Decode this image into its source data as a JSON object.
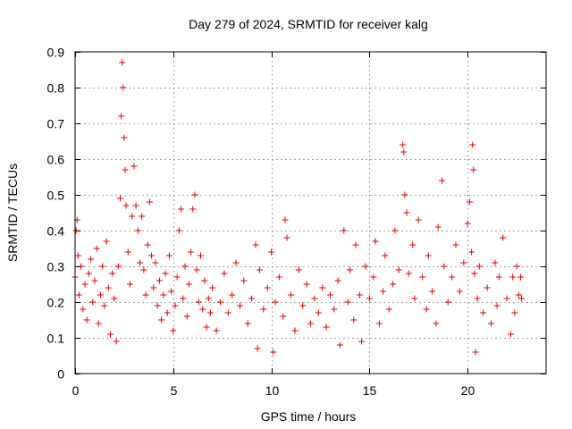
{
  "chart_data": {
    "type": "scatter",
    "title": "Day 279 of 2024, SRMTID for receiver kalg",
    "xlabel": "GPS time / hours",
    "ylabel": "SRMTID / TECUs",
    "xlim": [
      0,
      24
    ],
    "ylim": [
      0,
      0.9
    ],
    "xticks": [
      0,
      5,
      10,
      15,
      20
    ],
    "xtick_labels": [
      "0",
      "5",
      "10",
      "15",
      "20"
    ],
    "yticks": [
      0,
      0.1,
      0.2,
      0.3,
      0.4,
      0.5,
      0.6,
      0.7,
      0.8,
      0.9
    ],
    "ytick_labels": [
      "0",
      "0.1",
      "0.2",
      "0.3",
      "0.4",
      "0.5",
      "0.6",
      "0.7",
      "0.8",
      "0.9"
    ],
    "grid": true,
    "marker": "+",
    "color": "#e00000",
    "series": [
      {
        "name": "SRMTID",
        "points": [
          [
            0.0,
            0.27
          ],
          [
            0.05,
            0.4
          ],
          [
            0.1,
            0.43
          ],
          [
            0.15,
            0.33
          ],
          [
            0.2,
            0.22
          ],
          [
            0.3,
            0.3
          ],
          [
            0.4,
            0.18
          ],
          [
            0.5,
            0.25
          ],
          [
            0.6,
            0.15
          ],
          [
            0.7,
            0.28
          ],
          [
            0.8,
            0.32
          ],
          [
            0.9,
            0.2
          ],
          [
            1.0,
            0.26
          ],
          [
            1.1,
            0.35
          ],
          [
            1.2,
            0.14
          ],
          [
            1.3,
            0.22
          ],
          [
            1.4,
            0.3
          ],
          [
            1.5,
            0.19
          ],
          [
            1.6,
            0.37
          ],
          [
            1.7,
            0.24
          ],
          [
            1.8,
            0.11
          ],
          [
            1.9,
            0.28
          ],
          [
            2.0,
            0.21
          ],
          [
            2.1,
            0.09
          ],
          [
            2.2,
            0.3
          ],
          [
            2.3,
            0.49
          ],
          [
            2.35,
            0.72
          ],
          [
            2.4,
            0.87
          ],
          [
            2.45,
            0.8
          ],
          [
            2.5,
            0.66
          ],
          [
            2.55,
            0.57
          ],
          [
            2.6,
            0.47
          ],
          [
            2.7,
            0.34
          ],
          [
            2.8,
            0.25
          ],
          [
            2.9,
            0.44
          ],
          [
            3.0,
            0.58
          ],
          [
            3.1,
            0.47
          ],
          [
            3.2,
            0.4
          ],
          [
            3.3,
            0.31
          ],
          [
            3.4,
            0.44
          ],
          [
            3.5,
            0.29
          ],
          [
            3.6,
            0.22
          ],
          [
            3.7,
            0.36
          ],
          [
            3.8,
            0.48
          ],
          [
            3.9,
            0.33
          ],
          [
            4.0,
            0.24
          ],
          [
            4.1,
            0.31
          ],
          [
            4.2,
            0.19
          ],
          [
            4.3,
            0.26
          ],
          [
            4.4,
            0.15
          ],
          [
            4.5,
            0.22
          ],
          [
            4.6,
            0.28
          ],
          [
            4.7,
            0.17
          ],
          [
            4.8,
            0.33
          ],
          [
            4.9,
            0.23
          ],
          [
            5.0,
            0.12
          ],
          [
            5.1,
            0.19
          ],
          [
            5.2,
            0.27
          ],
          [
            5.3,
            0.4
          ],
          [
            5.4,
            0.46
          ],
          [
            5.5,
            0.21
          ],
          [
            5.6,
            0.3
          ],
          [
            5.7,
            0.16
          ],
          [
            5.8,
            0.25
          ],
          [
            5.9,
            0.34
          ],
          [
            6.0,
            0.46
          ],
          [
            6.1,
            0.5
          ],
          [
            6.2,
            0.29
          ],
          [
            6.3,
            0.2
          ],
          [
            6.4,
            0.33
          ],
          [
            6.5,
            0.18
          ],
          [
            6.6,
            0.26
          ],
          [
            6.7,
            0.13
          ],
          [
            6.8,
            0.21
          ],
          [
            6.9,
            0.17
          ],
          [
            7.0,
            0.24
          ],
          [
            7.2,
            0.12
          ],
          [
            7.4,
            0.2
          ],
          [
            7.6,
            0.28
          ],
          [
            7.8,
            0.17
          ],
          [
            8.0,
            0.22
          ],
          [
            8.2,
            0.31
          ],
          [
            8.4,
            0.19
          ],
          [
            8.6,
            0.26
          ],
          [
            8.8,
            0.14
          ],
          [
            9.0,
            0.21
          ],
          [
            9.2,
            0.36
          ],
          [
            9.3,
            0.07
          ],
          [
            9.4,
            0.29
          ],
          [
            9.6,
            0.18
          ],
          [
            9.8,
            0.24
          ],
          [
            10.0,
            0.34
          ],
          [
            10.1,
            0.06
          ],
          [
            10.2,
            0.2
          ],
          [
            10.4,
            0.27
          ],
          [
            10.6,
            0.16
          ],
          [
            10.7,
            0.43
          ],
          [
            10.8,
            0.38
          ],
          [
            11.0,
            0.22
          ],
          [
            11.2,
            0.12
          ],
          [
            11.4,
            0.29
          ],
          [
            11.6,
            0.19
          ],
          [
            11.8,
            0.25
          ],
          [
            12.0,
            0.14
          ],
          [
            12.2,
            0.21
          ],
          [
            12.4,
            0.17
          ],
          [
            12.6,
            0.24
          ],
          [
            12.8,
            0.13
          ],
          [
            13.0,
            0.22
          ],
          [
            13.2,
            0.18
          ],
          [
            13.4,
            0.26
          ],
          [
            13.5,
            0.08
          ],
          [
            13.7,
            0.4
          ],
          [
            13.9,
            0.2
          ],
          [
            14.0,
            0.29
          ],
          [
            14.2,
            0.15
          ],
          [
            14.3,
            0.36
          ],
          [
            14.5,
            0.22
          ],
          [
            14.6,
            0.09
          ],
          [
            14.8,
            0.3
          ],
          [
            15.0,
            0.21
          ],
          [
            15.2,
            0.27
          ],
          [
            15.3,
            0.37
          ],
          [
            15.5,
            0.14
          ],
          [
            15.7,
            0.23
          ],
          [
            15.8,
            0.33
          ],
          [
            16.0,
            0.18
          ],
          [
            16.2,
            0.25
          ],
          [
            16.3,
            0.4
          ],
          [
            16.5,
            0.29
          ],
          [
            16.7,
            0.64
          ],
          [
            16.75,
            0.62
          ],
          [
            16.8,
            0.5
          ],
          [
            16.9,
            0.45
          ],
          [
            17.0,
            0.28
          ],
          [
            17.2,
            0.36
          ],
          [
            17.3,
            0.21
          ],
          [
            17.5,
            0.43
          ],
          [
            17.7,
            0.27
          ],
          [
            17.9,
            0.18
          ],
          [
            18.0,
            0.33
          ],
          [
            18.2,
            0.23
          ],
          [
            18.4,
            0.14
          ],
          [
            18.5,
            0.41
          ],
          [
            18.7,
            0.54
          ],
          [
            18.8,
            0.3
          ],
          [
            19.0,
            0.2
          ],
          [
            19.2,
            0.27
          ],
          [
            19.4,
            0.36
          ],
          [
            19.6,
            0.23
          ],
          [
            19.8,
            0.31
          ],
          [
            20.0,
            0.42
          ],
          [
            20.1,
            0.48
          ],
          [
            20.2,
            0.34
          ],
          [
            20.25,
            0.64
          ],
          [
            20.3,
            0.57
          ],
          [
            20.35,
            0.28
          ],
          [
            20.4,
            0.06
          ],
          [
            20.5,
            0.21
          ],
          [
            20.6,
            0.3
          ],
          [
            20.8,
            0.17
          ],
          [
            21.0,
            0.24
          ],
          [
            21.2,
            0.14
          ],
          [
            21.4,
            0.31
          ],
          [
            21.5,
            0.19
          ],
          [
            21.6,
            0.27
          ],
          [
            21.8,
            0.38
          ],
          [
            22.0,
            0.21
          ],
          [
            22.2,
            0.11
          ],
          [
            22.3,
            0.27
          ],
          [
            22.4,
            0.17
          ],
          [
            22.5,
            0.3
          ],
          [
            22.6,
            0.22
          ],
          [
            22.7,
            0.27
          ],
          [
            22.75,
            0.21
          ]
        ]
      }
    ]
  }
}
